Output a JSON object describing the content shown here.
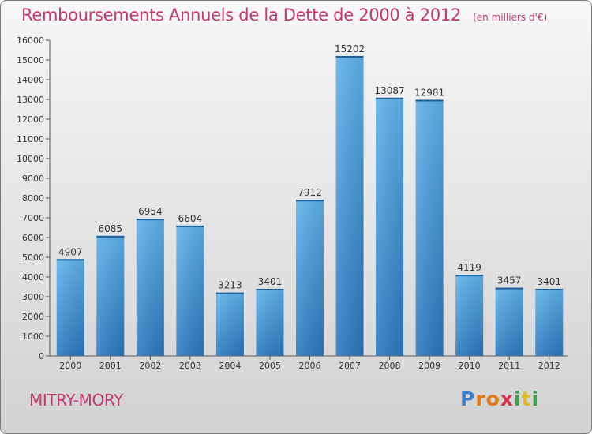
{
  "chart_data": {
    "type": "bar",
    "title": "Remboursements Annuels de la Dette de 2000 à 2012",
    "subtitle": "(en milliers d'€)",
    "categories": [
      "2000",
      "2001",
      "2002",
      "2003",
      "2004",
      "2005",
      "2006",
      "2007",
      "2008",
      "2009",
      "2010",
      "2011",
      "2012"
    ],
    "values": [
      4907,
      6085,
      6954,
      6604,
      3213,
      3401,
      7912,
      15202,
      13087,
      12981,
      4119,
      3457,
      3401
    ],
    "ylim": [
      0,
      16000
    ],
    "yticks": [
      0,
      1000,
      2000,
      3000,
      4000,
      5000,
      6000,
      7000,
      8000,
      9000,
      10000,
      11000,
      12000,
      13000,
      14000,
      15000,
      16000
    ],
    "grid": false,
    "bar_color": "#4aa3e0"
  },
  "commune": "MITRY-MORY",
  "logo": {
    "letters": [
      "P",
      "r",
      "o",
      "x",
      "i",
      "t",
      "i"
    ],
    "colors": [
      "#3a7fd0",
      "#e07b1a",
      "#e07b1a",
      "#d4324a",
      "#3aa34a",
      "#e0b81a",
      "#3aa34a"
    ]
  }
}
